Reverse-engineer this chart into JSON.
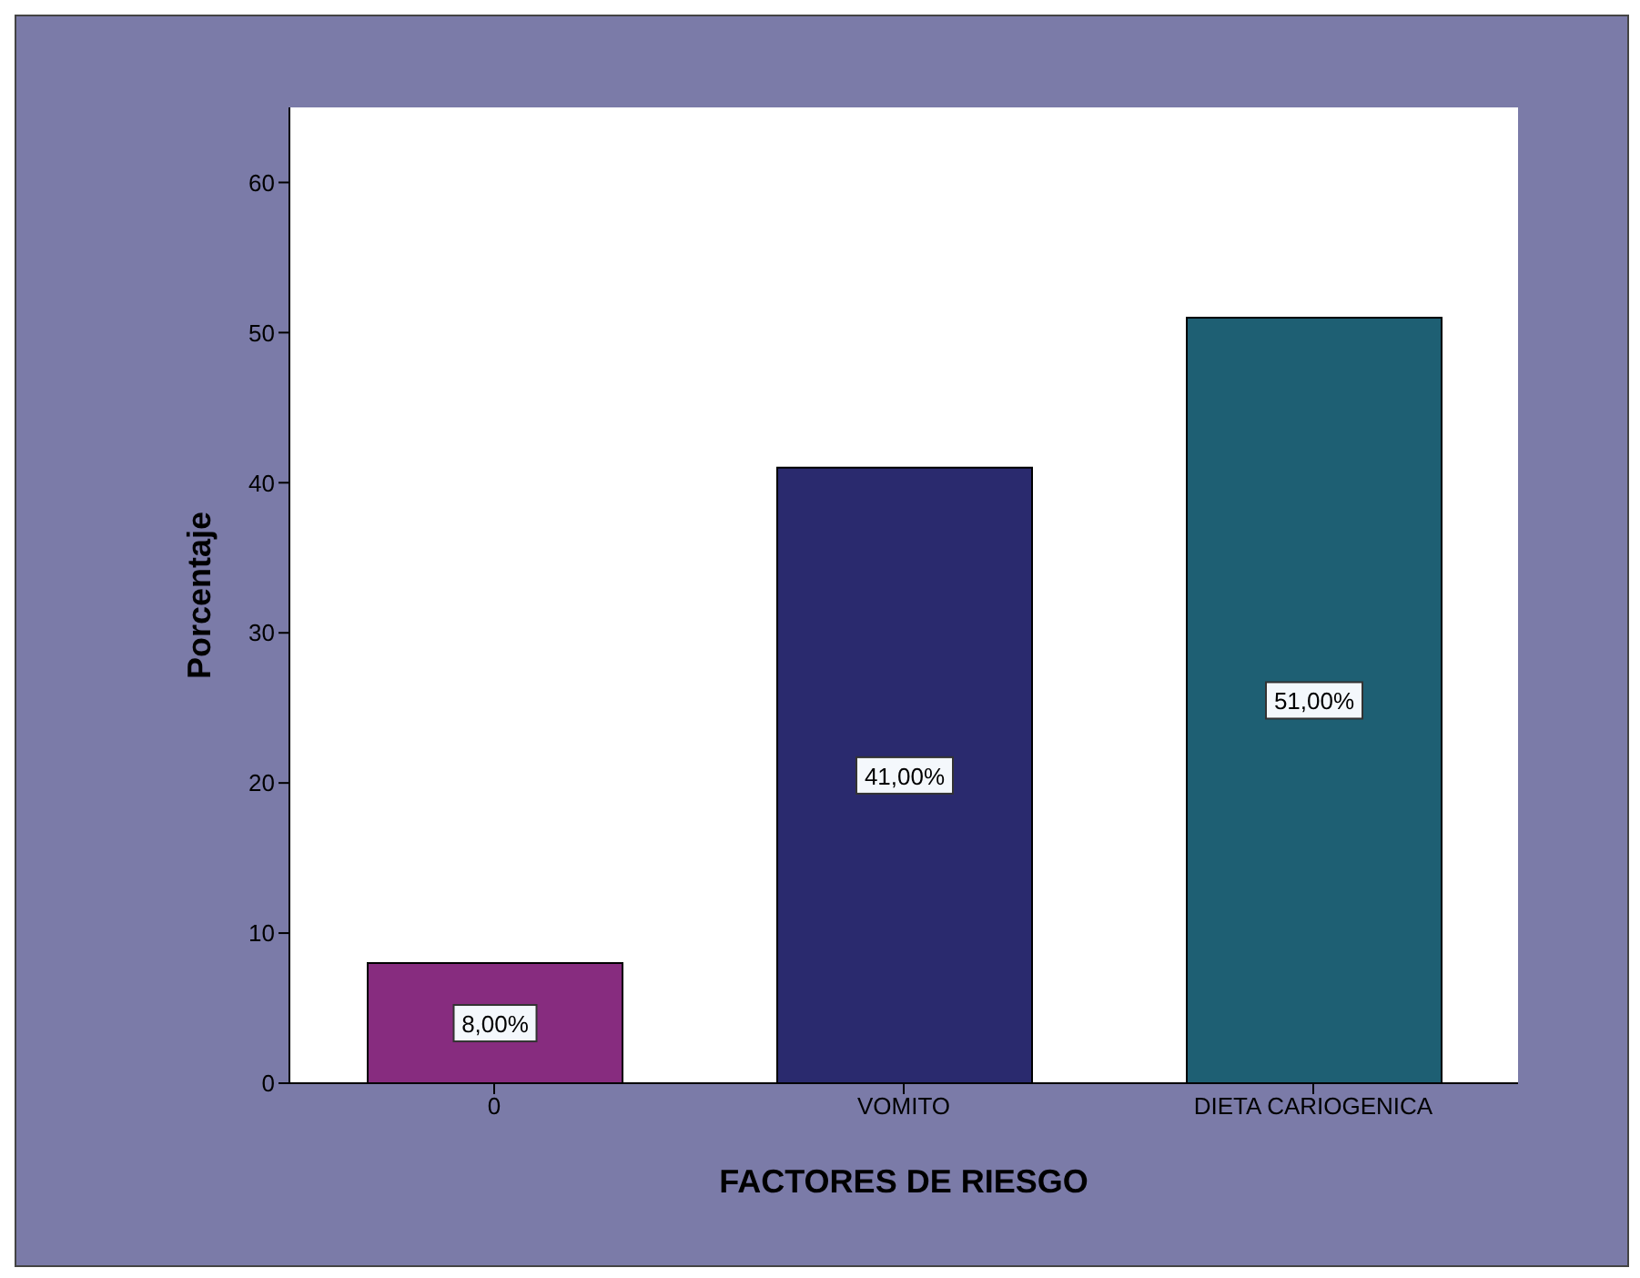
{
  "chart_data": {
    "type": "bar",
    "xlabel": "FACTORES DE RIESGO",
    "ylabel": "Porcentaje",
    "categories": [
      "0",
      "VOMITO",
      "DIETA CARIOGENICA"
    ],
    "values": [
      8,
      41,
      51
    ],
    "colors": [
      "#872c7f",
      "#2a2a6e",
      "#1e5f73"
    ],
    "value_labels": [
      "8,00%",
      "41,00%",
      "51,00%"
    ],
    "ylim": [
      0,
      65
    ],
    "yticks": [
      0,
      10,
      20,
      30,
      40,
      50,
      60
    ]
  }
}
